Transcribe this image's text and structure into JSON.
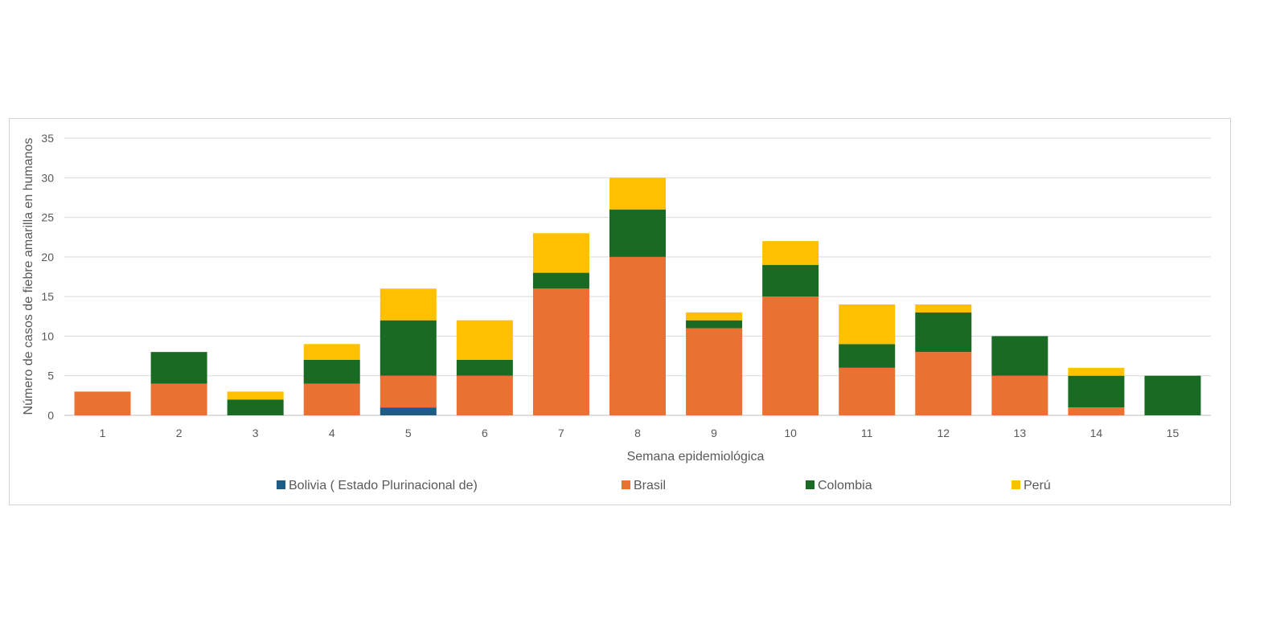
{
  "chart_data": {
    "type": "bar",
    "stacked": true,
    "title": "",
    "xlabel": "Semana epidemiológica",
    "ylabel": "Número de casos de fiebre amarilla en humanos",
    "ylim": [
      0,
      35
    ],
    "yticks": [
      0,
      5,
      10,
      15,
      20,
      25,
      30,
      35
    ],
    "grid": true,
    "legend_position": "bottom",
    "categories": [
      "1",
      "2",
      "3",
      "4",
      "5",
      "6",
      "7",
      "8",
      "9",
      "10",
      "11",
      "12",
      "13",
      "14",
      "15"
    ],
    "series": [
      {
        "name": "Bolivia ( Estado Plurinacional de)",
        "color": "#1f5c85",
        "values": [
          0,
          0,
          0,
          0,
          1,
          0,
          0,
          0,
          0,
          0,
          0,
          0,
          0,
          0,
          0
        ]
      },
      {
        "name": "Brasil",
        "color": "#e97132",
        "values": [
          3,
          4,
          0,
          4,
          4,
          5,
          16,
          20,
          11,
          15,
          6,
          8,
          5,
          1,
          0
        ]
      },
      {
        "name": "Colombia",
        "color": "#196b24",
        "values": [
          0,
          4,
          2,
          3,
          7,
          2,
          2,
          6,
          1,
          4,
          3,
          5,
          5,
          4,
          5
        ]
      },
      {
        "name": "Perú",
        "color": "#ffc000",
        "values": [
          0,
          0,
          1,
          2,
          4,
          5,
          5,
          4,
          1,
          3,
          5,
          1,
          0,
          1,
          0
        ]
      }
    ]
  }
}
